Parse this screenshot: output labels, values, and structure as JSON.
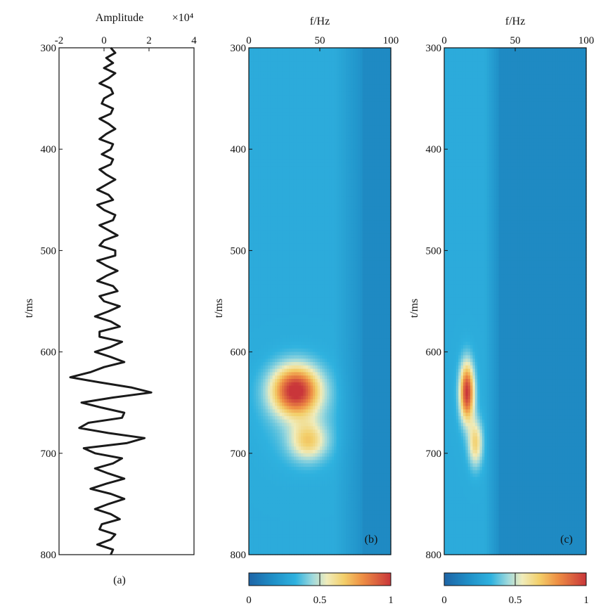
{
  "chart_data": [
    {
      "id": "a",
      "type": "line",
      "panel_label": "(a)",
      "title": "Amplitude",
      "x_multiplier": "×10⁴",
      "xlabel": "Amplitude",
      "ylabel": "t/ms",
      "xlim": [
        -2,
        4
      ],
      "ylim": [
        300,
        800
      ],
      "xticks": [
        -2,
        0,
        2,
        4
      ],
      "yticks": [
        300,
        400,
        500,
        600,
        700,
        800
      ],
      "series": [
        {
          "name": "seismic trace",
          "t": [
            300,
            305,
            310,
            315,
            320,
            325,
            330,
            335,
            340,
            345,
            350,
            355,
            360,
            365,
            370,
            375,
            380,
            385,
            390,
            395,
            400,
            405,
            410,
            415,
            420,
            425,
            430,
            435,
            440,
            445,
            450,
            455,
            460,
            465,
            470,
            475,
            480,
            485,
            490,
            495,
            500,
            505,
            510,
            515,
            520,
            525,
            530,
            535,
            540,
            545,
            550,
            555,
            560,
            565,
            570,
            575,
            580,
            585,
            590,
            595,
            600,
            605,
            610,
            615,
            620,
            625,
            630,
            635,
            640,
            645,
            650,
            655,
            660,
            665,
            670,
            675,
            680,
            685,
            690,
            695,
            700,
            705,
            710,
            715,
            720,
            725,
            730,
            735,
            740,
            745,
            750,
            755,
            760,
            765,
            770,
            775,
            780,
            785,
            790,
            795,
            800
          ],
          "amplitude": [
            0.3,
            0.5,
            0.1,
            0.4,
            0.0,
            0.5,
            0.2,
            -0.2,
            0.3,
            0.4,
            0.0,
            -0.1,
            0.4,
            0.3,
            -0.2,
            0.2,
            0.5,
            0.1,
            -0.2,
            0.4,
            0.3,
            -0.1,
            0.4,
            0.3,
            -0.2,
            0.1,
            0.5,
            0.1,
            -0.3,
            0.2,
            0.4,
            -0.3,
            0.0,
            0.5,
            0.4,
            -0.2,
            0.2,
            0.6,
            0.0,
            -0.2,
            0.5,
            0.5,
            -0.3,
            0.1,
            0.6,
            0.1,
            -0.3,
            0.4,
            0.6,
            -0.2,
            0.0,
            0.7,
            0.2,
            -0.4,
            0.3,
            0.7,
            -0.2,
            -0.2,
            0.8,
            0.3,
            -0.4,
            0.3,
            0.9,
            0.0,
            -0.6,
            -1.5,
            -0.2,
            1.2,
            2.1,
            0.4,
            -1.0,
            -0.1,
            0.9,
            0.8,
            -0.7,
            -1.1,
            0.2,
            1.8,
            1.0,
            -0.9,
            -0.4,
            0.8,
            0.4,
            -0.4,
            0.2,
            0.9,
            0.1,
            -0.6,
            0.3,
            0.9,
            0.2,
            -0.4,
            0.3,
            0.7,
            -0.1,
            -0.2,
            0.5,
            0.3,
            -0.3,
            0.4,
            0.3
          ]
        }
      ]
    },
    {
      "id": "b",
      "type": "heatmap",
      "panel_label": "(b)",
      "xlabel": "f/Hz",
      "ylabel": "t/ms",
      "xlim": [
        0,
        100
      ],
      "ylim": [
        300,
        800
      ],
      "xticks": [
        0,
        50,
        100
      ],
      "yticks": [
        300,
        400,
        500,
        600,
        700,
        800
      ],
      "colorbar": {
        "ticks": [
          0,
          0.5,
          1
        ],
        "tick_labels": [
          "0",
          "0.5",
          "1"
        ]
      },
      "background_value": 0.15,
      "band_edge_hz": 80,
      "hotspots": [
        {
          "f": 33,
          "t": 638,
          "value": 1.0,
          "sf": 12,
          "st": 17
        },
        {
          "f": 42,
          "t": 688,
          "value": 0.62,
          "sf": 9,
          "st": 13
        },
        {
          "f": 36,
          "t": 667,
          "value": 0.38,
          "sf": 18,
          "st": 30
        },
        {
          "f": 36,
          "t": 455,
          "value": 0.24,
          "sf": 7,
          "st": 12
        },
        {
          "f": 28,
          "t": 520,
          "value": 0.22,
          "sf": 10,
          "st": 18
        },
        {
          "f": 30,
          "t": 580,
          "value": 0.25,
          "sf": 14,
          "st": 25
        }
      ]
    },
    {
      "id": "c",
      "type": "heatmap",
      "panel_label": "(c)",
      "xlabel": "f/Hz",
      "ylabel": "t/ms",
      "xlim": [
        0,
        100
      ],
      "ylim": [
        300,
        800
      ],
      "xticks": [
        0,
        50,
        100
      ],
      "yticks": [
        300,
        400,
        500,
        600,
        700,
        800
      ],
      "colorbar": {
        "ticks": [
          0,
          0.5,
          1
        ],
        "tick_labels": [
          "0",
          "0.5",
          "1"
        ]
      },
      "background_value": 0.15,
      "band_edge_hz": 38,
      "hotspots": [
        {
          "f": 16,
          "t": 640,
          "value": 1.0,
          "sf": 3.5,
          "st": 20
        },
        {
          "f": 22,
          "t": 690,
          "value": 0.65,
          "sf": 3.5,
          "st": 16
        },
        {
          "f": 20,
          "t": 540,
          "value": 0.3,
          "sf": 3,
          "st": 70
        },
        {
          "f": 18,
          "t": 720,
          "value": 0.3,
          "sf": 8,
          "st": 40
        }
      ]
    }
  ]
}
